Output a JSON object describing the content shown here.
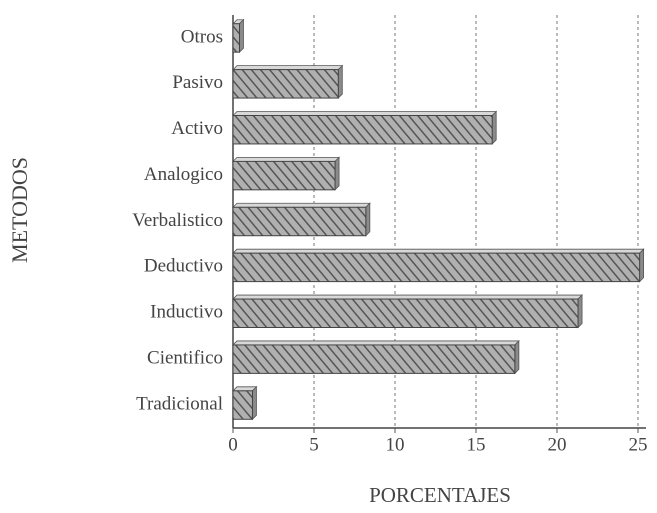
{
  "chart_data": {
    "type": "barh",
    "x_label": "PORCENTAJES",
    "y_label": "METODOS",
    "categories": [
      "Otros",
      "Pasivo",
      "Activo",
      "Analogico",
      "Verbalistico",
      "Deductivo",
      "Inductivo",
      "Cientifico",
      "Tradicional"
    ],
    "values": [
      0.4,
      6.5,
      16,
      6.3,
      8.2,
      25.1,
      21.3,
      17.4,
      1.2
    ],
    "color": "#8a8a8a",
    "xlim": [
      0,
      25
    ],
    "xticks": [
      0,
      5,
      10,
      15,
      20,
      25
    ],
    "grid": true
  }
}
